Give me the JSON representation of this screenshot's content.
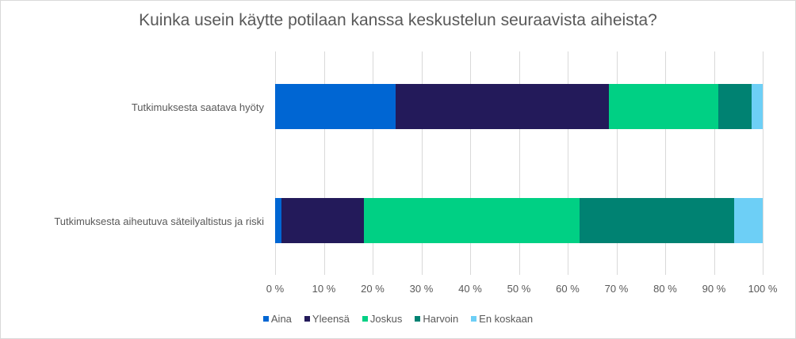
{
  "chart_data": {
    "type": "bar",
    "orientation": "horizontal",
    "stacked": "percent",
    "title": "Kuinka usein käytte potilaan kanssa keskustelun seuraavista aiheista?",
    "xlabel": "",
    "ylabel": "",
    "xlim": [
      0,
      100
    ],
    "grid": true,
    "legend_position": "bottom",
    "categories": [
      "Tutkimuksesta saatava hyöty",
      "Tutkimuksesta aiheutuva säteilyaltistus ja riski"
    ],
    "x_ticks": [
      "0 %",
      "10 %",
      "20 %",
      "30 %",
      "40 %",
      "50 %",
      "60 %",
      "70 %",
      "80 %",
      "90 %",
      "100 %"
    ],
    "series": [
      {
        "name": "Aina",
        "color": "#0066D3",
        "values": [
          24.7,
          1.3
        ]
      },
      {
        "name": "Yleensä",
        "color": "#231A5A",
        "values": [
          43.8,
          16.9
        ]
      },
      {
        "name": "Joskus",
        "color": "#00D084",
        "values": [
          22.4,
          44.2
        ]
      },
      {
        "name": "Harvoin",
        "color": "#008272",
        "values": [
          6.8,
          31.7
        ]
      },
      {
        "name": "En koskaan",
        "color": "#6DCFF6",
        "values": [
          2.3,
          5.9
        ]
      }
    ]
  }
}
